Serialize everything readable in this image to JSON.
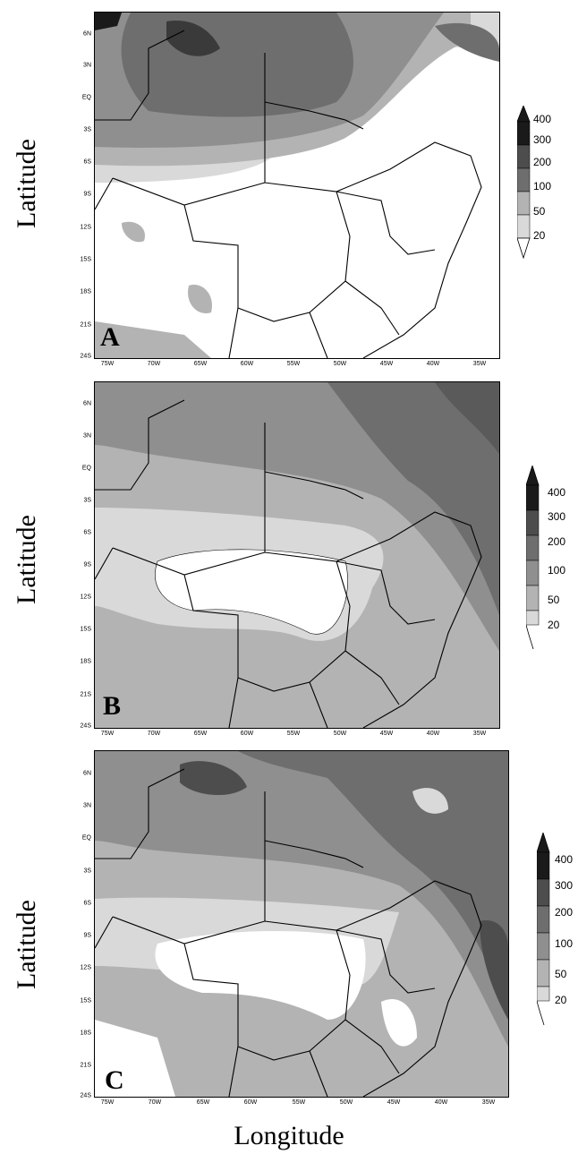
{
  "axis": {
    "ylabel": "Latitude",
    "xlabel": "Longitude",
    "lat_ticks": [
      "6N",
      "3N",
      "EQ",
      "3S",
      "6S",
      "9S",
      "12S",
      "15S",
      "18S",
      "21S",
      "24S"
    ],
    "lon_ticks": [
      "75W",
      "70W",
      "65W",
      "60W",
      "55W",
      "50W",
      "45W",
      "40W",
      "35W"
    ]
  },
  "colorbar": {
    "levels": [
      "400",
      "300",
      "200",
      "100",
      "50",
      "20"
    ],
    "colors": [
      "#1a1a1a",
      "#4d4d4d",
      "#6e6e6e",
      "#8f8f8f",
      "#b3b3b3",
      "#d9d9d9",
      "#ffffff"
    ]
  },
  "panels": [
    {
      "id": "A",
      "letter": "A"
    },
    {
      "id": "B",
      "letter": "B"
    },
    {
      "id": "C",
      "letter": "C"
    }
  ]
}
